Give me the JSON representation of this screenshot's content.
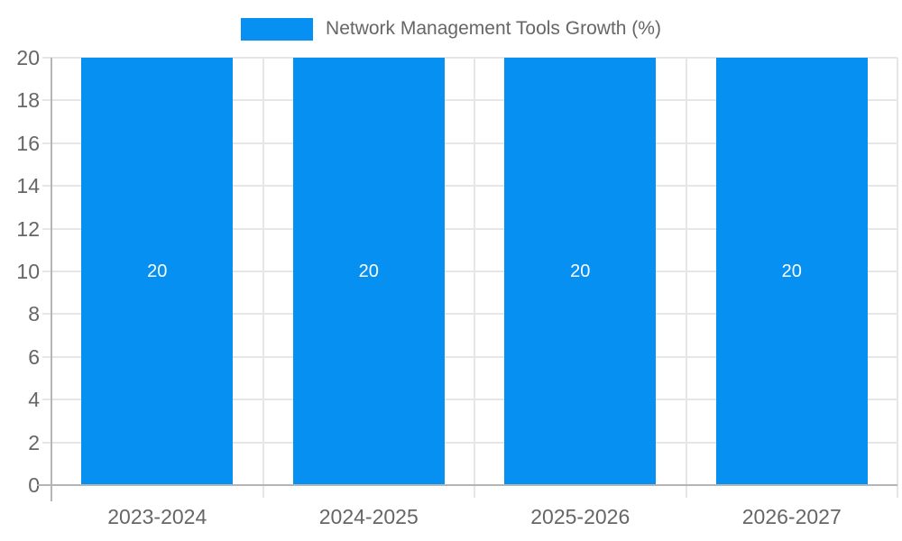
{
  "chart_data": {
    "type": "bar",
    "title": "Network Management Tools Growth (%)",
    "categories": [
      "2023-2024",
      "2024-2025",
      "2025-2026",
      "2026-2027"
    ],
    "values": [
      20,
      20,
      20,
      20
    ],
    "bar_labels": [
      "20",
      "20",
      "20",
      "20"
    ],
    "xlabel": "",
    "ylabel": "",
    "ylim": [
      0,
      20
    ],
    "yticks": [
      0,
      2,
      4,
      6,
      8,
      10,
      12,
      14,
      16,
      18,
      20
    ],
    "grid": true,
    "legend": {
      "position": "top",
      "label": "Network Management Tools Growth (%)"
    }
  },
  "colors": {
    "bar": "#0590f2",
    "text": "#666666",
    "bar_label": "#ffffff",
    "gridline": "#e6e6e6",
    "axis_line": "#b5b5b5",
    "background": "#ffffff"
  }
}
